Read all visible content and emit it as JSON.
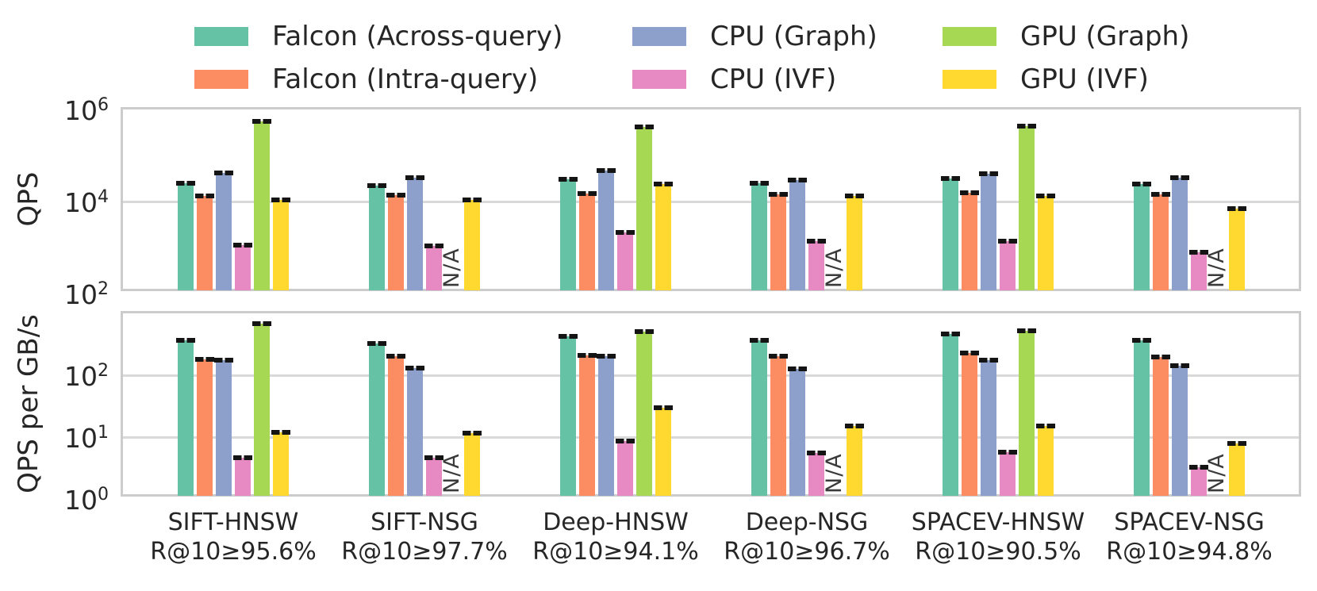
{
  "figure": {
    "na_label": "N/A",
    "frame_color": "#cccccc",
    "errorbar_color": "#141414"
  },
  "chart_data": {
    "type": "bar",
    "grouped": true,
    "yscale": "log",
    "grid": "horizontal",
    "legend_position": "top",
    "categories": [
      "SIFT-HNSW",
      "SIFT-NSG",
      "Deep-HNSW",
      "Deep-NSG",
      "SPACEV-HNSW",
      "SPACEV-NSG"
    ],
    "category_recall_labels": [
      "R@10≥95.6%",
      "R@10≥97.7%",
      "R@10≥94.1%",
      "R@10≥96.7%",
      "R@10≥90.5%",
      "R@10≥94.8%"
    ],
    "series_names": [
      "Falcon (Across-query)",
      "Falcon (Intra-query)",
      "CPU (Graph)",
      "CPU (IVF)",
      "GPU (Graph)",
      "GPU (IVF)"
    ],
    "series_colors": [
      "#66c2a5",
      "#fc8d62",
      "#8da0cb",
      "#e78ac3",
      "#a6d854",
      "#ffd92f"
    ],
    "na_note": "null values are drawn as rotated N/A text",
    "subplots": [
      {
        "ylabel": "QPS",
        "ylim": [
          100,
          1000000
        ],
        "ytick_exponents": [
          6,
          4,
          2
        ],
        "series": [
          {
            "name": "Falcon (Across-query)",
            "values": [
              22000,
              20000,
              27000,
              22000,
              28000,
              21000
            ]
          },
          {
            "name": "Falcon (Intra-query)",
            "values": [
              11500,
              12300,
              13000,
              12600,
              14000,
              12600
            ]
          },
          {
            "name": "CPU (Graph)",
            "values": [
              37000,
              29000,
              41000,
              26000,
              35500,
              29000
            ]
          },
          {
            "name": "CPU (IVF)",
            "values": [
              1000,
              950,
              1900,
              1200,
              1200,
              700
            ]
          },
          {
            "name": "GPU (Graph)",
            "values": [
              480000,
              null,
              370000,
              null,
              380000,
              null
            ]
          },
          {
            "name": "GPU (IVF)",
            "values": [
              9500,
              9500,
              21000,
              11700,
              11500,
              6200
            ]
          }
        ]
      },
      {
        "ylabel": "QPS per GB/s",
        "ylim": [
          1,
          1000
        ],
        "ytick_exponents": [
          2,
          1,
          0
        ],
        "series": [
          {
            "name": "Falcon (Across-query)",
            "values": [
              340,
              300,
              390,
              340,
              420,
              340
            ]
          },
          {
            "name": "Falcon (Intra-query)",
            "values": [
              165,
              185,
              190,
              185,
              210,
              180
            ]
          },
          {
            "name": "CPU (Graph)",
            "values": [
              160,
              120,
              186,
              115,
              160,
              130
            ]
          },
          {
            "name": "CPU (IVF)",
            "values": [
              4.3,
              4.2,
              8,
              5,
              5.2,
              3
            ]
          },
          {
            "name": "GPU (Graph)",
            "values": [
              620,
              null,
              465,
              null,
              480,
              null
            ]
          },
          {
            "name": "GPU (IVF)",
            "values": [
              11,
              10.5,
              27,
              14,
              14,
              7.3
            ]
          }
        ]
      }
    ]
  }
}
